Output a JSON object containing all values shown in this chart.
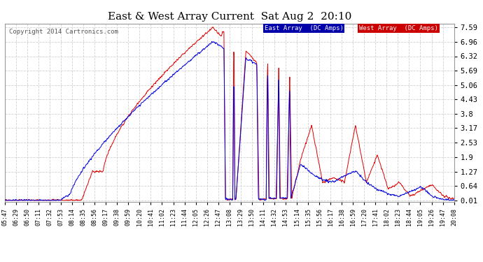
{
  "title": "East & West Array Current  Sat Aug 2  20:10",
  "copyright": "Copyright 2014 Cartronics.com",
  "background_color": "#ffffff",
  "plot_bg_color": "#ffffff",
  "grid_color": "#cccccc",
  "east_color": "#0000dd",
  "west_color": "#dd0000",
  "legend_east": "East Array  (DC Amps)",
  "legend_west": "West Array  (DC Amps)",
  "legend_east_bg": "#0000aa",
  "legend_west_bg": "#cc0000",
  "yticks": [
    0.01,
    0.64,
    1.27,
    1.9,
    2.53,
    3.17,
    3.8,
    4.43,
    5.06,
    5.69,
    6.32,
    6.96,
    7.59
  ],
  "ylim": [
    -0.05,
    7.75
  ],
  "xtick_labels": [
    "05:47",
    "06:29",
    "06:50",
    "07:11",
    "07:32",
    "07:53",
    "08:14",
    "08:35",
    "08:56",
    "09:17",
    "09:38",
    "09:59",
    "10:20",
    "10:41",
    "11:02",
    "11:23",
    "11:44",
    "12:05",
    "12:26",
    "12:47",
    "13:08",
    "13:29",
    "13:50",
    "14:11",
    "14:32",
    "14:53",
    "15:14",
    "15:35",
    "15:56",
    "16:17",
    "16:38",
    "16:59",
    "17:20",
    "17:41",
    "18:02",
    "18:23",
    "18:44",
    "19:05",
    "19:26",
    "19:47",
    "20:08"
  ]
}
